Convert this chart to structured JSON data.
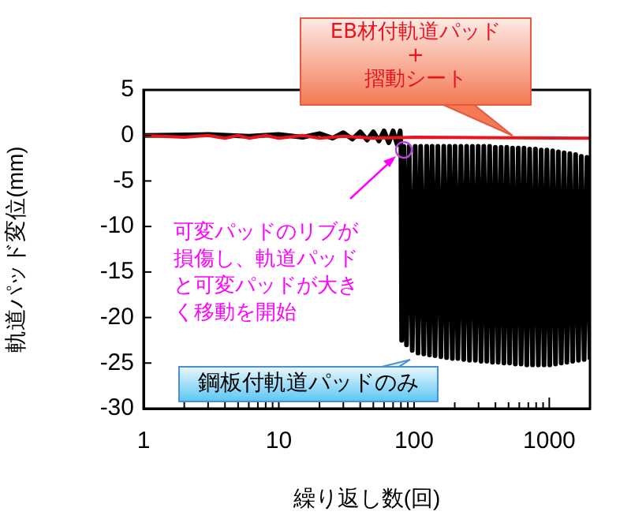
{
  "chart_data": {
    "type": "line",
    "xlabel": "繰り返し数(回)",
    "ylabel": "軌道パッド変位(mm)",
    "log": "x",
    "xlim": [
      1,
      2000
    ],
    "ylim": [
      -30,
      5
    ],
    "xticks": [
      1,
      {
        "value": 2,
        "label": null
      },
      {
        "value": 3,
        "label": null
      },
      {
        "value": 4,
        "label": null
      },
      {
        "value": 5,
        "label": null
      },
      {
        "value": 6,
        "label": null
      },
      {
        "value": 7,
        "label": null
      },
      {
        "value": 8,
        "label": null
      },
      {
        "value": 9,
        "label": null
      },
      10,
      {
        "value": 20,
        "label": null
      },
      {
        "value": 30,
        "label": null
      },
      {
        "value": 40,
        "label": null
      },
      {
        "value": 50,
        "label": null
      },
      {
        "value": 60,
        "label": null
      },
      {
        "value": 70,
        "label": null
      },
      {
        "value": 80,
        "label": null
      },
      {
        "value": 90,
        "label": null
      },
      100,
      {
        "value": 200,
        "label": null
      },
      {
        "value": 300,
        "label": null
      },
      {
        "value": 400,
        "label": null
      },
      {
        "value": 500,
        "label": null
      },
      {
        "value": 600,
        "label": null
      },
      {
        "value": 700,
        "label": null
      },
      {
        "value": 800,
        "label": null
      },
      {
        "value": 900,
        "label": null
      },
      1000
    ],
    "yticks": [
      5,
      0,
      -5,
      -10,
      -15,
      -20,
      -25,
      -30
    ],
    "grid": false,
    "legend": false,
    "marker": "none",
    "line_style": "solid",
    "series": [
      {
        "name": "鋼板付軌道パッドのみ",
        "color": "#000000",
        "x": [
          1,
          3,
          6,
          10,
          15,
          20,
          25,
          30,
          35,
          40,
          45,
          50,
          55,
          60,
          65,
          70,
          75,
          79,
          80,
          81,
          84,
          88,
          92,
          97,
          102,
          107,
          112,
          118,
          124,
          130,
          136,
          143,
          150,
          158,
          166,
          174,
          183,
          192,
          201,
          211,
          222,
          233,
          245,
          257,
          270,
          284,
          298,
          313,
          328,
          345,
          362,
          380,
          399,
          419,
          440,
          462,
          485,
          509,
          535,
          561,
          590,
          619,
          650,
          682,
          716,
          752,
          790,
          830,
          871,
          915,
          960,
          1008,
          1059,
          1112,
          1167,
          1226,
          1287,
          1351,
          1419,
          1490,
          1565,
          1643,
          1725,
          1811,
          1900,
          2000
        ],
        "values": [
          0,
          0.1,
          -0.1,
          0.1,
          -0.2,
          0.2,
          -0.3,
          0.3,
          -0.4,
          0.4,
          -0.5,
          0.4,
          -0.6,
          0.5,
          -0.8,
          0.5,
          -1,
          0.5,
          -1.2,
          -22.5,
          -1.2,
          -23,
          -1.2,
          -23.6,
          -1.2,
          -23.9,
          -1.2,
          -24,
          -1.2,
          -24.1,
          -1.2,
          -24.2,
          -1.2,
          -24.3,
          -1.2,
          -24.4,
          -1.2,
          -24.5,
          -1.2,
          -24.5,
          -1.2,
          -24.6,
          -1.2,
          -24.7,
          -1.2,
          -24.7,
          -1.2,
          -24.8,
          -1.2,
          -24.8,
          -1.2,
          -24.9,
          -1.3,
          -24.9,
          -1.3,
          -25,
          -1.3,
          -25,
          -1.4,
          -25.1,
          -1.4,
          -25.1,
          -1.4,
          -25.2,
          -1.5,
          -25.2,
          -1.5,
          -25.2,
          -1.6,
          -25.2,
          -1.6,
          -25.2,
          -1.7,
          -25.1,
          -1.8,
          -25,
          -1.9,
          -24.9,
          -2,
          -24.8,
          -2.1,
          -24.7,
          -2.3,
          -24.6,
          -2.4,
          -24.6
        ]
      },
      {
        "name": "EB材付軌道パッド\n+\n摺動シート",
        "color": "#e8141e",
        "x": [
          1,
          2,
          3,
          4,
          5,
          6,
          8,
          10,
          15,
          20,
          30,
          50,
          100,
          2000
        ],
        "values": [
          0,
          -0.2,
          0,
          -0.3,
          0,
          -0.3,
          0,
          -0.3,
          0,
          -0.3,
          -0.1,
          -0.3,
          -0.2,
          -0.3
        ]
      }
    ],
    "annotations": [
      "可変パッドのリブが損傷し、軌道パッドと可変パッドが大きく移動を開始"
    ]
  }
}
